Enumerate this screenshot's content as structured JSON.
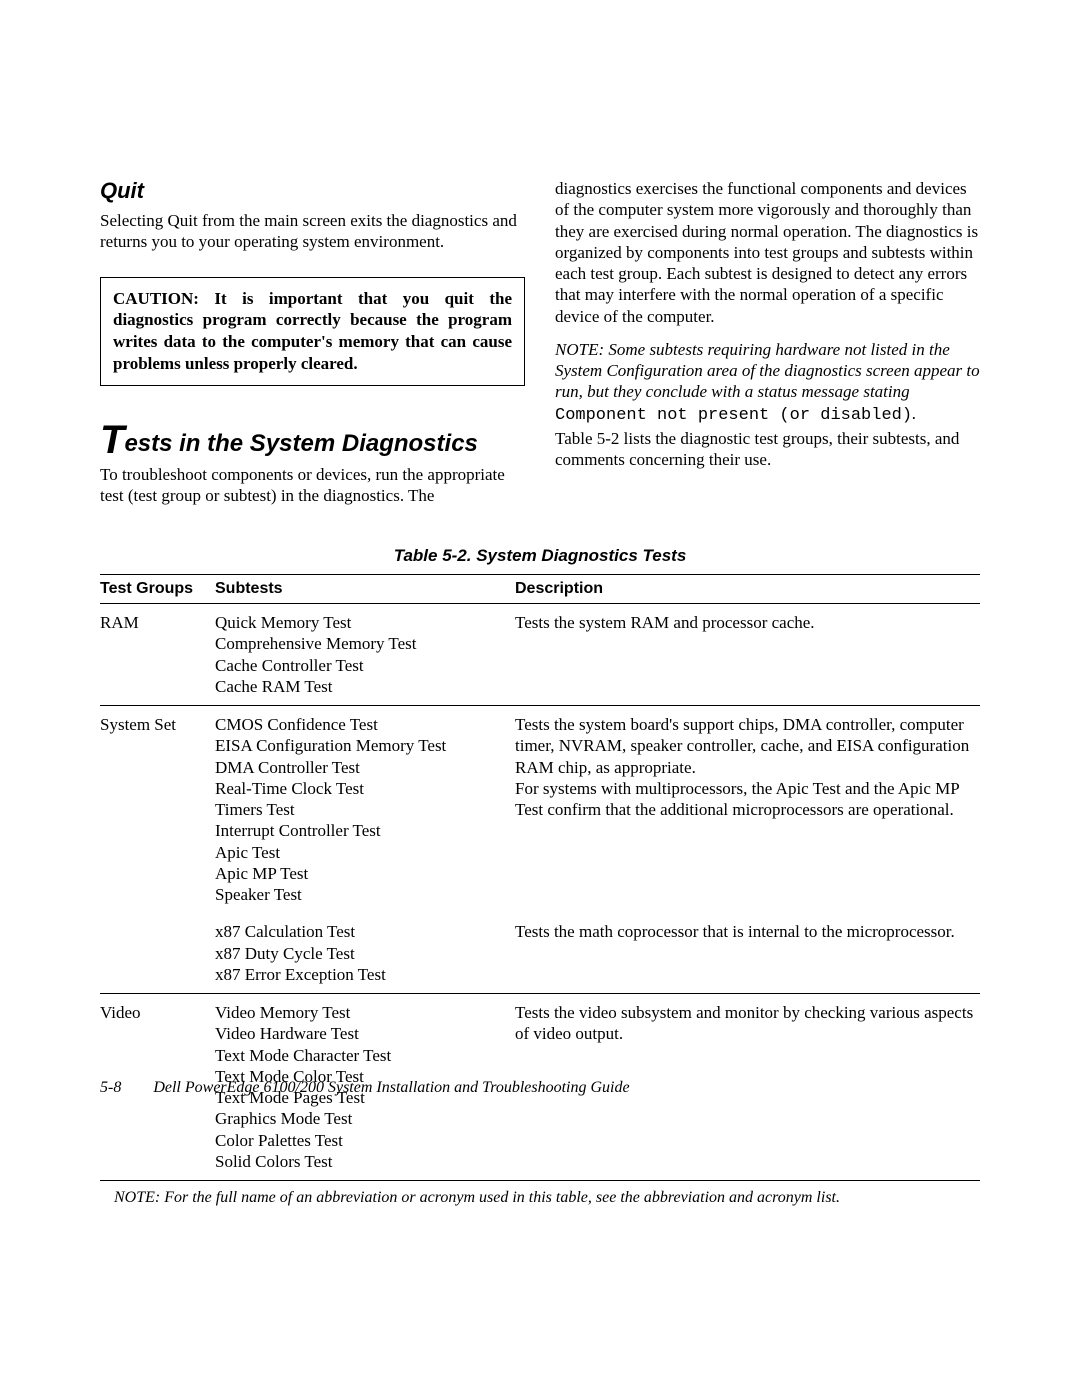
{
  "left_col": {
    "quit_heading": "Quit",
    "quit_text": "Selecting Quit from the main screen exits the diagnostics and returns you to your operating system environment.",
    "caution_text": "CAUTION: It is important that you quit the diagnostics program correctly because the program writes data to the computer's memory that can cause problems unless properly cleared.",
    "section_heading_cap": "T",
    "section_heading_rest": "ests in the System Diagnostics",
    "section_text": "To troubleshoot components or devices, run the appropriate test (test group or subtest) in the diagnostics. The"
  },
  "right_col": {
    "para1": "diagnostics exercises the functional components and devices of the computer system more vigorously and thoroughly than they are exercised during normal operation. The diagnostics is organized by components into test groups and subtests within each test group. Each subtest is designed to detect any errors that may interfere with the normal operation of a specific device of the computer.",
    "note_prefix": "NOTE: Some subtests requiring hardware not listed in the System Configuration area of the diagnostics screen appear to run, but they conclude with a status message stating ",
    "note_mono": "Component not present (or disabled)",
    "note_suffix": ".",
    "para2": "Table 5-2 lists the diagnostic test groups, their subtests, and comments concerning their use."
  },
  "table": {
    "caption": "Table 5-2.  System Diagnostics Tests",
    "headers": {
      "group": "Test Groups",
      "subtests": "Subtests",
      "desc": "Description"
    },
    "rows": [
      {
        "group": "RAM",
        "subtests": "Quick Memory Test\nComprehensive Memory Test\nCache Controller Test\nCache RAM Test",
        "desc": "Tests the system RAM and processor cache."
      },
      {
        "group": "System Set",
        "sub1": "CMOS Confidence Test\nEISA Configuration Memory Test\nDMA Controller Test\nReal-Time Clock Test\nTimers Test\nInterrupt Controller Test\nApic Test\nApic MP Test\nSpeaker Test",
        "desc1": "Tests the system board's support chips, DMA controller, computer timer, NVRAM, speaker controller, cache, and EISA configuration RAM chip, as appropriate.\nFor systems with multiprocessors, the Apic Test and the Apic MP Test confirm that the additional microprocessors are operational.",
        "sub2": "x87 Calculation Test\nx87 Duty Cycle Test\nx87 Error Exception Test",
        "desc2": "Tests the math coprocessor that is internal to the microprocessor."
      },
      {
        "group": "Video",
        "subtests": "Video Memory Test\nVideo Hardware Test\nText Mode Character Test\nText Mode Color Test\nText Mode Pages Test\nGraphics Mode Test\nColor Palettes Test\nSolid Colors Test",
        "desc": "Tests the video subsystem and monitor by checking various aspects of video output."
      }
    ],
    "note": "NOTE: For the full name of an abbreviation or acronym used in this table, see the abbreviation and acronym list."
  },
  "footer": {
    "pageno": "5-8",
    "title": "Dell PowerEdge 6100/200 System Installation and Troubleshooting Guide"
  }
}
